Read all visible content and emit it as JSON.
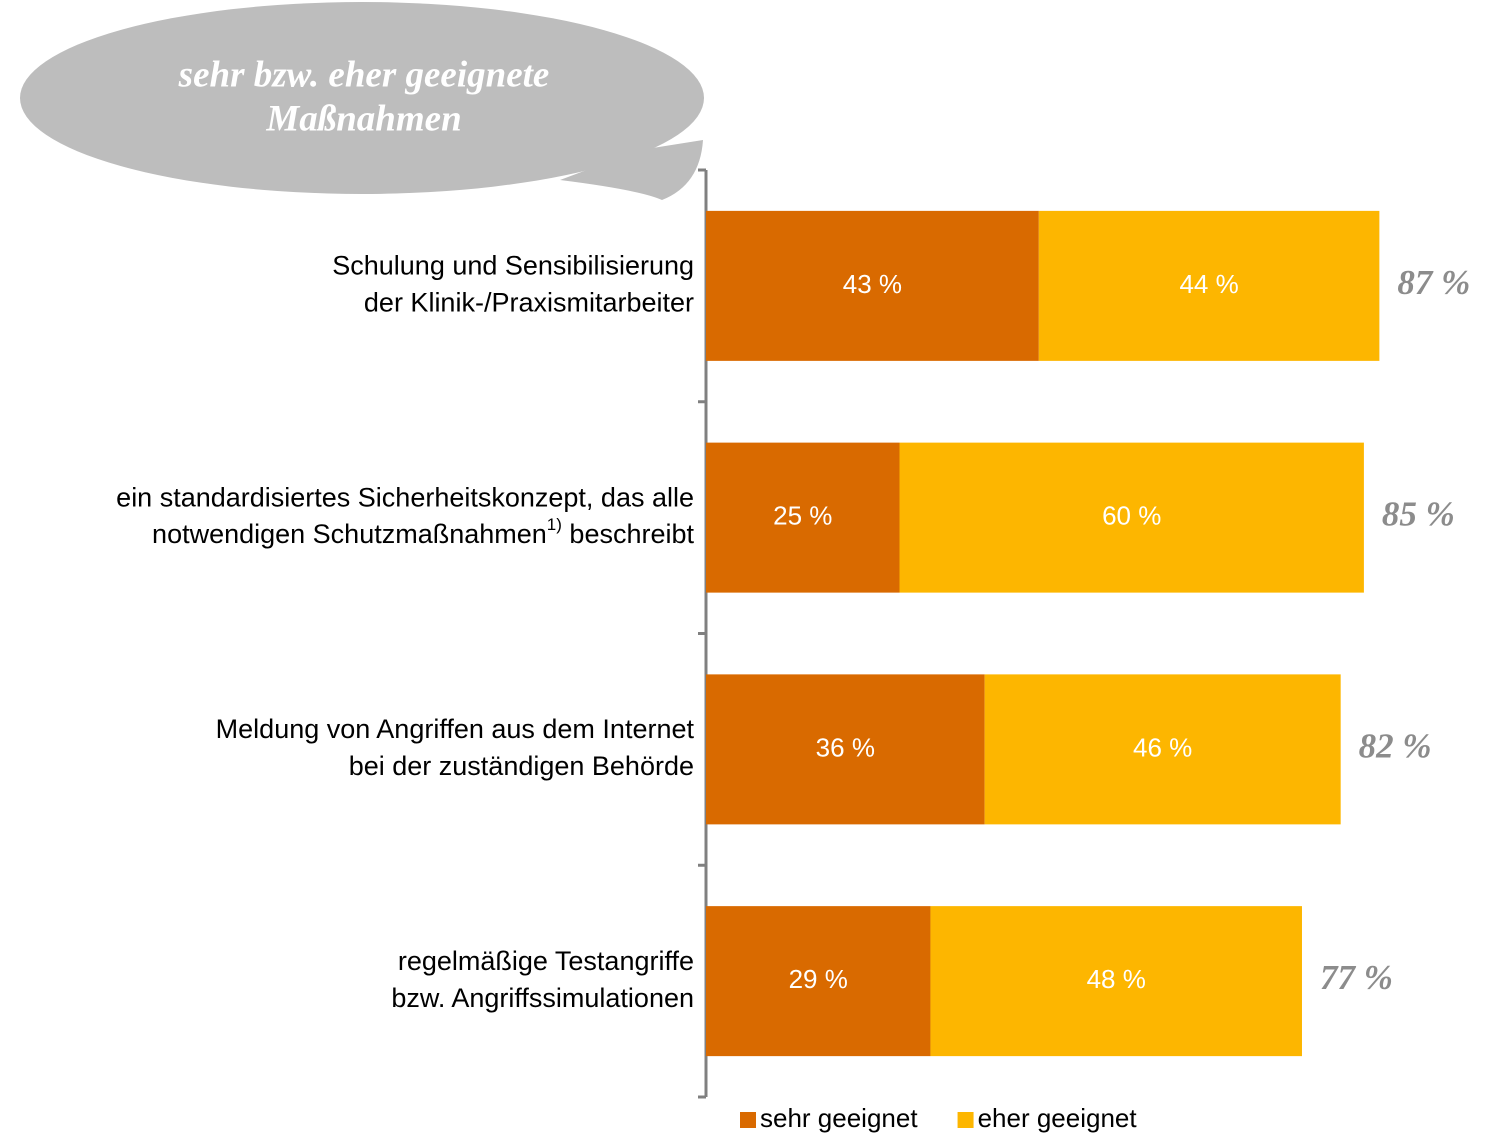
{
  "chart_data": {
    "type": "stacked_bar_horizontal",
    "title": [
      "sehr bzw. eher geeignete",
      "Maßnahmen"
    ],
    "categories": [
      [
        "Schulung und Sensibilisierung",
        "der Klinik-/Praxismitarbeiter"
      ],
      [
        "ein standardisiertes Sicherheitskonzept, das alle",
        [
          "notwendigen Schutzmaßnahmen",
          {
            "sup": "1)"
          },
          " beschreibt"
        ]
      ],
      [
        "Meldung von Angriffen aus dem Internet",
        "bei der zuständigen Behörde"
      ],
      [
        "regelmäßige Testangriffe",
        "bzw. Angriffssimulationen"
      ]
    ],
    "series": [
      {
        "name": "sehr geeignet",
        "color": "#d96a00",
        "values": [
          43,
          25,
          36,
          29
        ],
        "value_labels": [
          "43 %",
          "25 %",
          "36 %",
          "29 %"
        ]
      },
      {
        "name": "eher geeignet",
        "color": "#fdb600",
        "values": [
          44,
          60,
          46,
          48
        ],
        "value_labels": [
          "44 %",
          "60 %",
          "46 %",
          "48 %"
        ]
      }
    ],
    "totals": [
      87,
      85,
      82,
      77
    ],
    "total_labels": [
      "87 %",
      "85 %",
      "82 %",
      "77 %"
    ],
    "xlim": [
      0,
      100
    ],
    "legend": "bottom"
  }
}
